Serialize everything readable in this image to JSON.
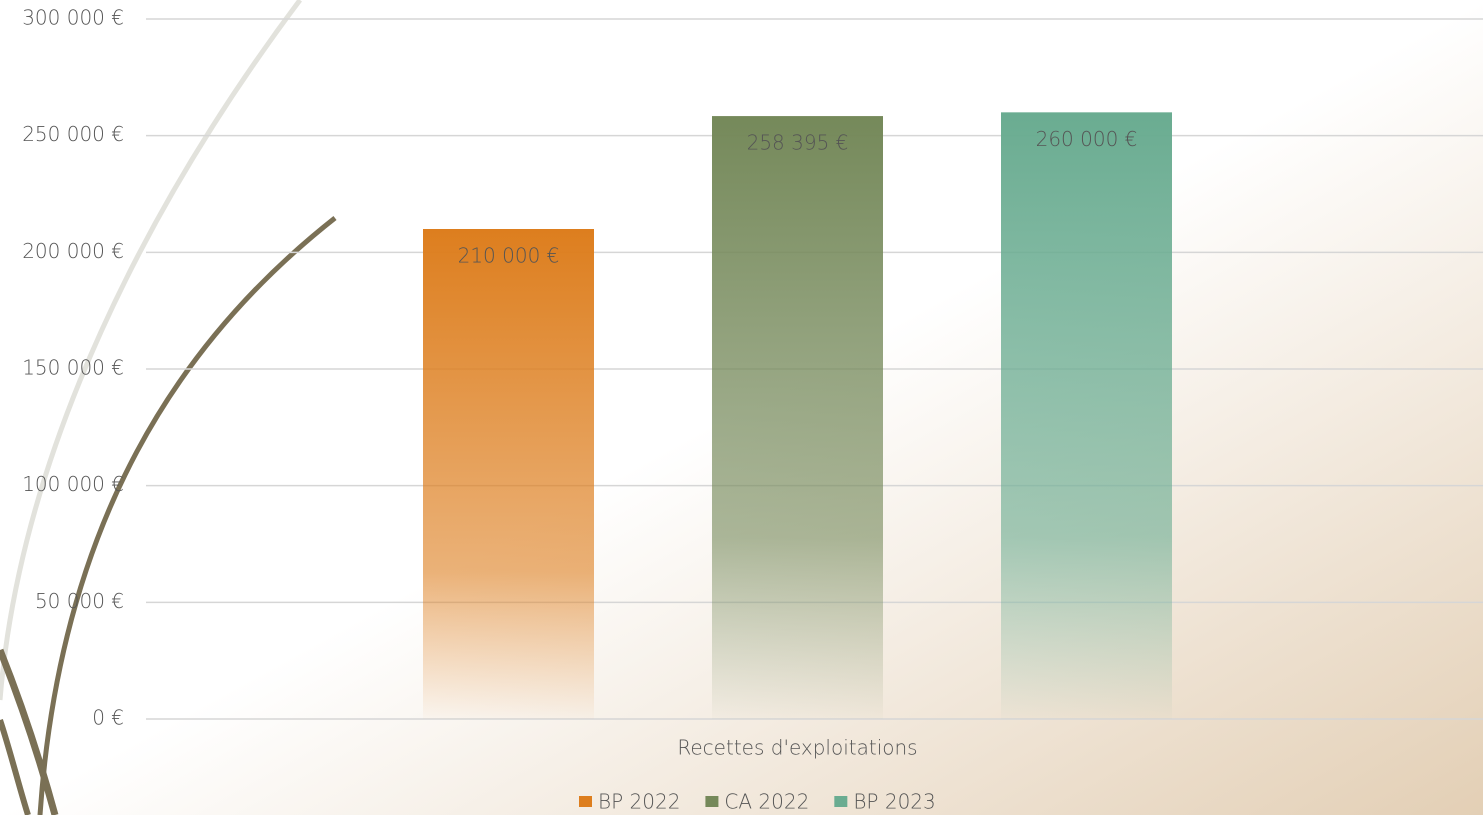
{
  "chart_data": {
    "type": "bar",
    "categories": [
      "Recettes d'exploitations"
    ],
    "series": [
      {
        "name": "BP 2022",
        "color": "#dd7e1e",
        "values": [
          210000
        ],
        "value_labels": [
          "210 000 €"
        ]
      },
      {
        "name": "CA 2022",
        "color": "#75895a",
        "values": [
          258395
        ],
        "value_labels": [
          "258 395 €"
        ]
      },
      {
        "name": "BP 2023",
        "color": "#6aac91",
        "values": [
          260000
        ],
        "value_labels": [
          "260 000 €"
        ]
      }
    ],
    "ylim": [
      0,
      300000
    ],
    "yticks": [
      {
        "value": 0,
        "label": "0 €"
      },
      {
        "value": 50000,
        "label": "50 000 €"
      },
      {
        "value": 100000,
        "label": "100 000 €"
      },
      {
        "value": 150000,
        "label": "150 000 €"
      },
      {
        "value": 200000,
        "label": "200 000 €"
      },
      {
        "value": 250000,
        "label": "250 000 €"
      },
      {
        "value": 300000,
        "label": "300 000 €"
      }
    ],
    "grid": true,
    "legend": "bottom"
  }
}
